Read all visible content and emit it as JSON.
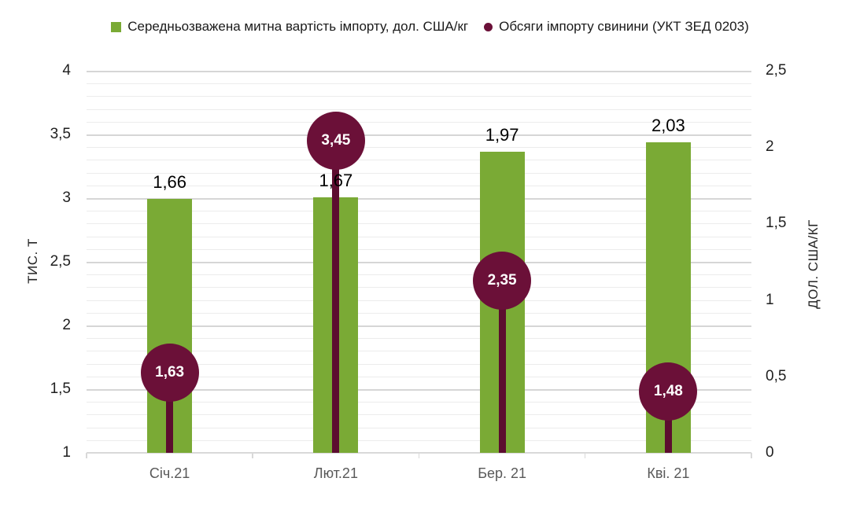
{
  "legend": {
    "items": [
      {
        "label": "Середньозважена митна вартість імпорту, дол. США/кг",
        "marker": "square",
        "color": "#7AAA35"
      },
      {
        "label": "Обсяги імпорту свинини (УКТ ЗЕД 0203)",
        "marker": "circle",
        "color": "#6B1038"
      }
    ]
  },
  "chart_data": {
    "type": "bar",
    "categories": [
      "Січ.21",
      "Лют.21",
      "Бер. 21",
      "Кві. 21"
    ],
    "series": [
      {
        "name": "Середньозважена митна вартість імпорту, дол. США/кг",
        "render": "bar",
        "axis": "right",
        "color": "#7AAA35",
        "values": [
          1.66,
          1.67,
          1.97,
          2.03
        ],
        "labels": [
          "1,66",
          "1,67",
          "1,97",
          "2,03"
        ]
      },
      {
        "name": "Обсяги імпорту свинини (УКТ ЗЕД 0203)",
        "render": "lollipop",
        "axis": "left",
        "color": "#6B1038",
        "stem_color": "#5C0D2F",
        "values": [
          1.63,
          3.45,
          2.35,
          1.48
        ],
        "labels": [
          "1,63",
          "3,45",
          "2,35",
          "1,48"
        ]
      }
    ],
    "left_axis": {
      "title": "ТИС. Т",
      "min": 1,
      "max": 4,
      "major_step": 0.5,
      "minor_step": 0.1,
      "ticks": [
        {
          "v": 4,
          "label": "4"
        },
        {
          "v": 3.5,
          "label": "3,5"
        },
        {
          "v": 3,
          "label": "3"
        },
        {
          "v": 2.5,
          "label": "2,5"
        },
        {
          "v": 2,
          "label": "2"
        },
        {
          "v": 1.5,
          "label": "1,5"
        },
        {
          "v": 1,
          "label": "1"
        }
      ]
    },
    "right_axis": {
      "title": "ДОЛ. США/КГ",
      "min": 0,
      "max": 2.5,
      "major_step": 0.5,
      "ticks": [
        {
          "v": 2.5,
          "label": "2,5"
        },
        {
          "v": 2,
          "label": "2"
        },
        {
          "v": 1.5,
          "label": "1,5"
        },
        {
          "v": 1,
          "label": "1"
        },
        {
          "v": 0.5,
          "label": "0,5"
        },
        {
          "v": 0,
          "label": "0"
        }
      ]
    },
    "grid": {
      "orientation": "horizontal",
      "major_color": "#d6d6d6",
      "minor_color": "#ececec"
    },
    "legend_position": "top"
  }
}
